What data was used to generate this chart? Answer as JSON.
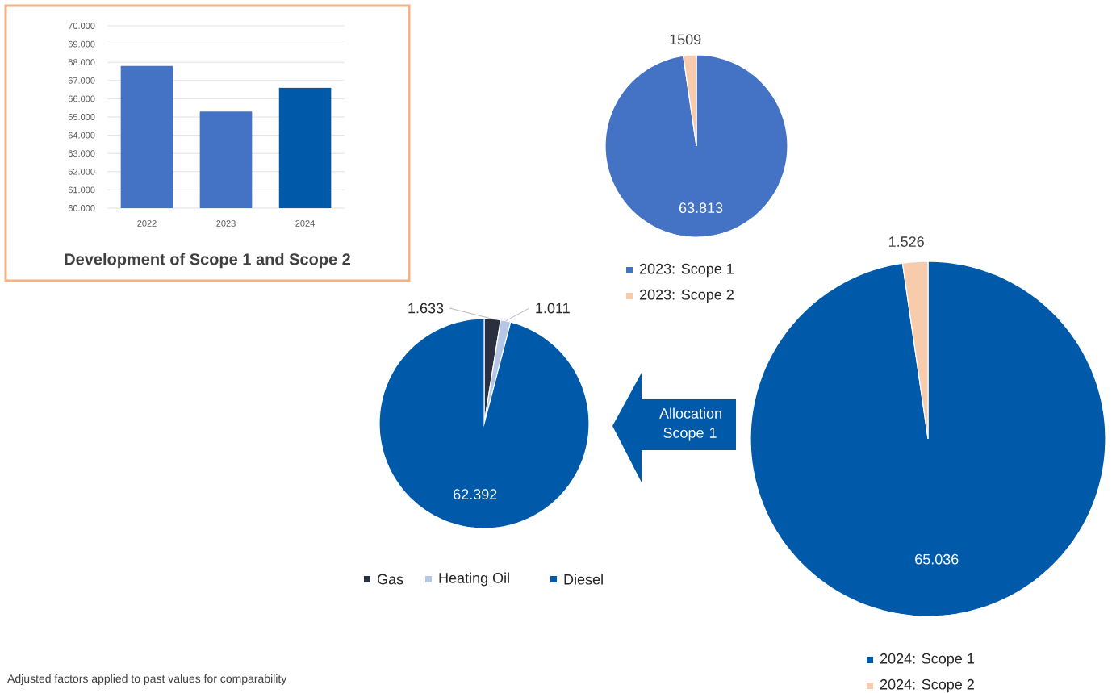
{
  "chart_data": [
    {
      "type": "bar",
      "title": "Development of Scope 1 and Scope 2",
      "categories": [
        "2022",
        "2023",
        "2024"
      ],
      "values": [
        67800,
        65300,
        66600
      ],
      "colors": [
        "#4472c4",
        "#4472c4",
        "#005aa9"
      ],
      "ylim": [
        60000,
        70000
      ],
      "yticks": [
        {
          "value": 60000,
          "label": "60.000"
        },
        {
          "value": 61000,
          "label": "61.000"
        },
        {
          "value": 62000,
          "label": "62.000"
        },
        {
          "value": 63000,
          "label": "63.000"
        },
        {
          "value": 64000,
          "label": "64.000"
        },
        {
          "value": 65000,
          "label": "65.000"
        },
        {
          "value": 66000,
          "label": "66.000"
        },
        {
          "value": 67000,
          "label": "67.000"
        },
        {
          "value": 68000,
          "label": "68.000"
        },
        {
          "value": 69000,
          "label": "69.000"
        },
        {
          "value": 70000,
          "label": "70.000"
        }
      ],
      "grid": "y",
      "annotations": [
        "Adjusted factors applied to past values for comparability"
      ]
    },
    {
      "type": "pie",
      "categories": [
        "2023: Scope 1",
        "2023: Scope 2"
      ],
      "values": [
        63813,
        1509
      ],
      "colors": [
        "#4472c4",
        "#f8cbad"
      ],
      "value_labels": [
        "63.813",
        "1509"
      ],
      "legend": "bottom"
    },
    {
      "type": "pie",
      "categories": [
        "Gas",
        "Heating Oil",
        "Diesel"
      ],
      "values": [
        1633,
        1011,
        62392
      ],
      "colors": [
        "#2b3040",
        "#b4c7e7",
        "#005aa9"
      ],
      "value_labels": [
        "1.633",
        "1.011",
        "62.392"
      ],
      "legend": "bottom",
      "annotations": [
        "Allocation Scope 1"
      ]
    },
    {
      "type": "pie",
      "categories": [
        "2024: Scope 1",
        "2024: Scope 2"
      ],
      "values": [
        65036,
        1526
      ],
      "colors": [
        "#005aa9",
        "#f8cbad"
      ],
      "value_labels": [
        "65.036",
        "1.526"
      ],
      "legend": "bottom"
    }
  ]
}
